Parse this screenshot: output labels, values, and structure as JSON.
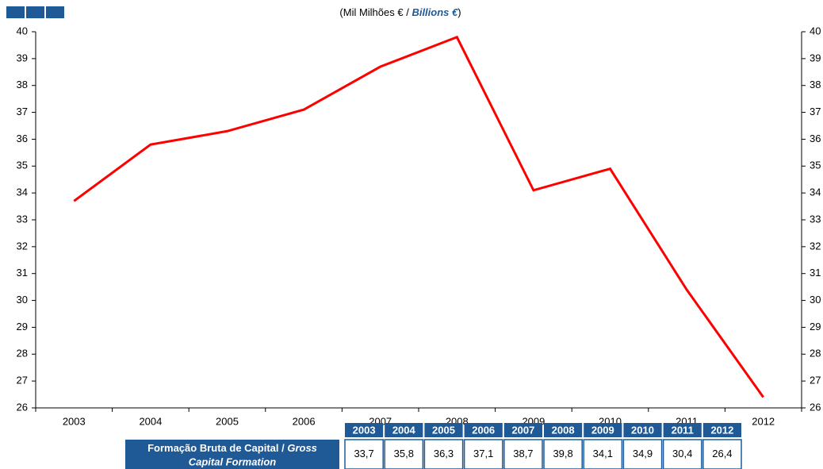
{
  "chart_data": {
    "type": "line",
    "title_parts": [
      "(Mil Milhões € / ",
      "Billions €",
      ")"
    ],
    "categories": [
      "2003",
      "2004",
      "2005",
      "2006",
      "2007",
      "2008",
      "2009",
      "2010",
      "2011",
      "2012"
    ],
    "series": [
      {
        "name": "Formação Bruta de Capital / Gross Capital Formation",
        "color": "#ff0000",
        "values": [
          33.7,
          35.8,
          36.3,
          37.1,
          38.7,
          39.8,
          34.1,
          34.9,
          30.4,
          26.4
        ],
        "value_labels": [
          "33,7",
          "35,8",
          "36,3",
          "37,1",
          "38,7",
          "39,8",
          "34,1",
          "34,9",
          "30,4",
          "26,4"
        ]
      }
    ],
    "ylim": [
      26,
      40
    ],
    "yticks": [
      26,
      27,
      28,
      29,
      30,
      31,
      32,
      33,
      34,
      35,
      36,
      37,
      38,
      39,
      40
    ],
    "y2lim": [
      26,
      40
    ],
    "y2ticks": [
      26,
      27,
      28,
      29,
      30,
      31,
      32,
      33,
      34,
      35,
      36,
      37,
      38,
      39,
      40
    ],
    "grid": false,
    "table_row_label": [
      "Formação Bruta de Capital / ",
      "Gross",
      "Capital Formation"
    ]
  }
}
